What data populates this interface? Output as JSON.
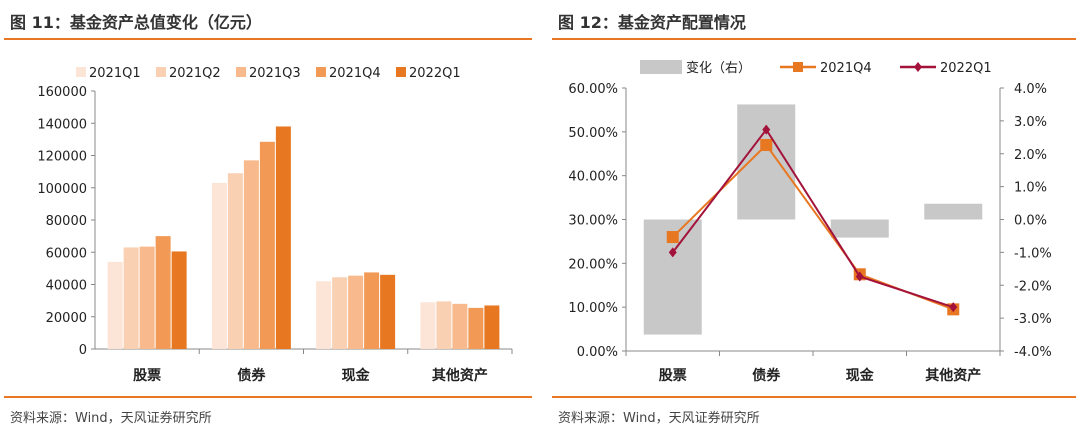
{
  "left": {
    "title": "图 11：基金资产总值变化（亿元）",
    "source": "资料来源：Wind，天风证券研究所"
  },
  "right": {
    "title": "图 12：基金资产配置情况",
    "source": "资料来源：Wind，天风证券研究所"
  },
  "chart_data": [
    {
      "type": "bar",
      "title": "图 11：基金资产总值变化（亿元）",
      "categories": [
        "股票",
        "债券",
        "现金",
        "其他资产"
      ],
      "ylim": [
        0,
        160000
      ],
      "yticks": [
        "160000",
        "140000",
        "120000",
        "100000",
        "80000",
        "60000",
        "40000",
        "20000",
        "0"
      ],
      "legend_position": "top",
      "series": [
        {
          "name": "2021Q1",
          "color": "#FCE5D6",
          "values": [
            54000,
            103000,
            42000,
            29000
          ]
        },
        {
          "name": "2021Q2",
          "color": "#FAD0B3",
          "values": [
            63000,
            109000,
            44500,
            29500
          ]
        },
        {
          "name": "2021Q3",
          "color": "#F8BA8C",
          "values": [
            63500,
            117000,
            45500,
            28000
          ]
        },
        {
          "name": "2021Q4",
          "color": "#F29A55",
          "values": [
            70000,
            128500,
            47500,
            25500
          ]
        },
        {
          "name": "2022Q1",
          "color": "#E87722",
          "values": [
            60500,
            138000,
            46000,
            27000
          ]
        }
      ]
    },
    {
      "type": "bar+line",
      "title": "图 12：基金资产配置情况",
      "categories": [
        "股票",
        "债券",
        "现金",
        "其他资产"
      ],
      "ylim": [
        0,
        0.6
      ],
      "yticks": [
        "60.00%",
        "50.00%",
        "40.00%",
        "30.00%",
        "20.00%",
        "10.00%",
        "0.00%"
      ],
      "y2lim": [
        -0.04,
        0.04
      ],
      "y2ticks": [
        "4.0%",
        "3.0%",
        "2.0%",
        "1.0%",
        "0.0%",
        "-1.0%",
        "-2.0%",
        "-3.0%",
        "-4.0%"
      ],
      "legend_position": "top",
      "series": [
        {
          "name": "变化（右）",
          "kind": "bar",
          "axis": "right",
          "color": "#C8C8C8",
          "values": [
            -0.035,
            0.035,
            -0.0055,
            0.0048
          ]
        },
        {
          "name": "2021Q4",
          "kind": "line",
          "axis": "left",
          "color": "#E87722",
          "marker": "square",
          "values": [
            0.26,
            0.47,
            0.175,
            0.095
          ]
        },
        {
          "name": "2022Q1",
          "kind": "line",
          "axis": "left",
          "color": "#A3123A",
          "marker": "diamond",
          "values": [
            0.225,
            0.505,
            0.17,
            0.1
          ]
        }
      ]
    }
  ]
}
